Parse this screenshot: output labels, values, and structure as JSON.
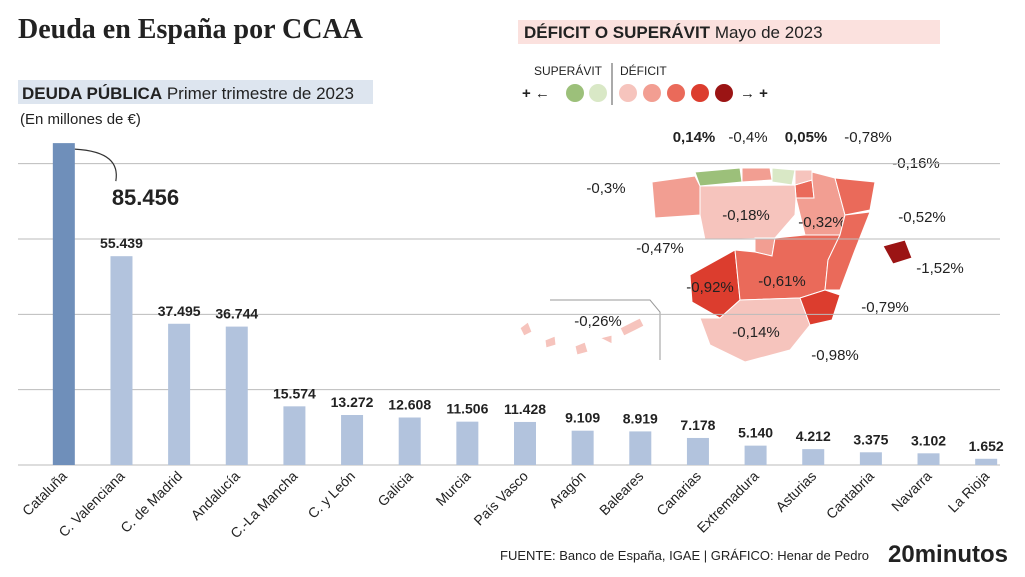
{
  "title": "Deuda en España por CCAA",
  "footer": {
    "source": "FUENTE: Banco de España, IGAE",
    "separator": "|",
    "credit": "GRÁFICO: Henar de Pedro",
    "logo": "20minutos"
  },
  "chart_data": [
    {
      "type": "bar",
      "title": "DEUDA PÚBLICA",
      "subtitle": "Primer trimestre de 2023",
      "unit_note": "(En millones de €)",
      "categories": [
        "Cataluña",
        "C. Valenciana",
        "C. de Madrid",
        "Andalucía",
        "C.-La Mancha",
        "C. y León",
        "Galicia",
        "Murcia",
        "País Vasco",
        "Aragón",
        "Baleares",
        "Canarias",
        "Extremadura",
        "Asturias",
        "Cantabria",
        "Navarra",
        "La Rioja"
      ],
      "values": [
        85456,
        55439,
        37495,
        36744,
        15574,
        13272,
        12608,
        11506,
        11428,
        9109,
        8919,
        7178,
        5140,
        4212,
        3375,
        3102,
        1652
      ],
      "value_labels": [
        "85.456",
        "55.439",
        "37.495",
        "36.744",
        "15.574",
        "13.272",
        "12.608",
        "11.506",
        "11.428",
        "9.109",
        "8.919",
        "7.178",
        "5.140",
        "4.212",
        "3.375",
        "3.102",
        "1.652"
      ],
      "colors": [
        "#6f8fba",
        "#b2c3dd",
        "#b2c3dd",
        "#b2c3dd",
        "#b2c3dd",
        "#b2c3dd",
        "#b2c3dd",
        "#b2c3dd",
        "#b2c3dd",
        "#b2c3dd",
        "#b2c3dd",
        "#b2c3dd",
        "#b2c3dd",
        "#b2c3dd",
        "#b2c3dd",
        "#b2c3dd",
        "#b2c3dd"
      ],
      "ylim": [
        0,
        90000
      ],
      "yticks": [
        0,
        20000,
        40000,
        60000,
        80000
      ],
      "grid": true
    },
    {
      "type": "map",
      "title": "DÉFICIT O SUPERÁVIT",
      "subtitle": "Mayo de 2023",
      "legend": {
        "surplus": "SUPERÁVIT",
        "deficit": "DÉFICIT",
        "left": "+ ←",
        "right": "→ +"
      },
      "values": [
        0.14,
        -0.4,
        0.05,
        -0.78,
        -0.16,
        -0.3,
        -0.18,
        -0.32,
        -0.52,
        -0.47,
        -1.52,
        -0.92,
        -0.61,
        -0.26,
        -0.79,
        -0.14,
        -0.98
      ],
      "value_labels": [
        "0,14%",
        "-0,4%",
        "0,05%",
        "-0,78%",
        "-0,16%",
        "-0,3%",
        "-0,18%",
        "-0,32%",
        "-0,52%",
        "-0,47%",
        "-1,52%",
        "-0,92%",
        "-0,61%",
        "-0,26%",
        "-0,79%",
        "-0,14%",
        "-0,98%"
      ]
    }
  ]
}
